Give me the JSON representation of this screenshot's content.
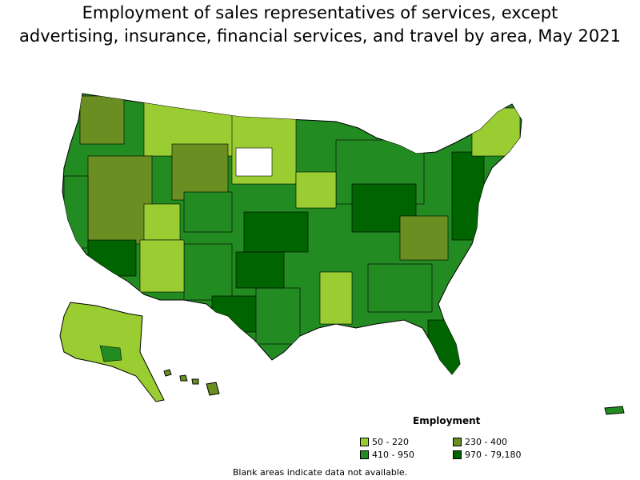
{
  "title_line1": "Employment of sales representatives of services, except",
  "title_line2": "advertising, insurance, financial services, and travel by area, May 2021",
  "legend": {
    "title": "Employment",
    "items": [
      {
        "label": "50 - 220",
        "color": "#9acd32"
      },
      {
        "label": "230 - 400",
        "color": "#6b8e23"
      },
      {
        "label": "410 - 950",
        "color": "#228b22"
      },
      {
        "label": "970 - 79,180",
        "color": "#006400"
      }
    ]
  },
  "footnote": "Blank areas indicate data not available."
}
